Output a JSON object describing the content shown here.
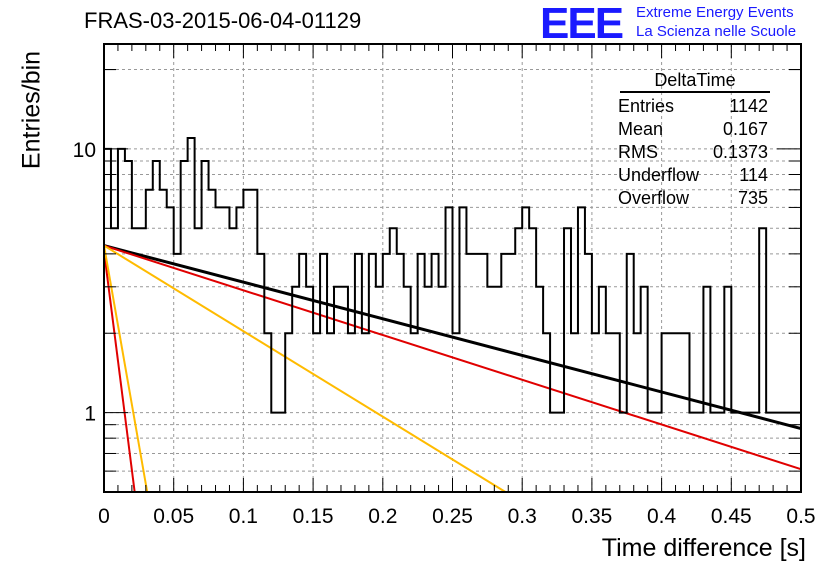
{
  "title": "FRAS-03-2015-06-04-01129",
  "logo": {
    "mark": "EEE",
    "line1": "Extreme Energy Events",
    "line2": "La Scienza nelle Scuole",
    "color": "#1a1aff"
  },
  "stats_box": {
    "title": "DeltaTime",
    "rows": [
      {
        "label": "Entries",
        "value": "1142"
      },
      {
        "label": "Mean",
        "value": "0.167"
      },
      {
        "label": "RMS",
        "value": "0.1373"
      },
      {
        "label": "Underflow",
        "value": "114"
      },
      {
        "label": "Overflow",
        "value": "735"
      }
    ]
  },
  "chart_data": {
    "type": "histogram",
    "title": "FRAS-03-2015-06-04-01129",
    "xlabel": "Time difference [s]",
    "ylabel": "Entries/bin",
    "xlim": [
      0,
      0.5
    ],
    "ylim": [
      0.5,
      25
    ],
    "yscale": "log",
    "grid": true,
    "xticks": [
      "0",
      "0.05",
      "0.1",
      "0.15",
      "0.2",
      "0.25",
      "0.3",
      "0.35",
      "0.4",
      "0.45",
      "0.5"
    ],
    "yticks": [
      "1",
      "10"
    ],
    "bin_width": 0.005,
    "bin_counts": [
      10,
      5,
      10,
      9,
      5,
      5,
      7,
      9,
      7,
      6,
      4,
      9,
      11,
      5,
      9,
      7,
      6,
      6,
      5,
      6,
      7,
      7,
      4,
      2,
      1,
      1,
      2,
      3,
      4,
      3,
      2,
      4,
      2,
      3,
      3,
      2,
      4,
      2,
      4,
      3,
      4,
      5,
      4,
      3,
      2,
      4,
      3,
      4,
      3,
      6,
      2,
      6,
      4,
      4,
      4,
      3,
      3,
      4,
      4,
      5,
      6,
      5,
      3,
      2,
      1,
      1,
      5,
      2,
      6,
      4,
      2,
      3,
      2,
      2,
      1,
      4,
      2,
      3,
      1,
      1,
      2,
      2,
      2,
      2,
      1,
      1,
      3,
      1,
      1,
      3,
      1,
      1,
      1,
      1,
      5,
      1,
      1,
      1,
      1,
      1
    ],
    "series": [
      {
        "label": "black",
        "color": "#000000",
        "y0": 4.3,
        "y1": 0.87
      },
      {
        "label": "red",
        "color": "#e00000",
        "y0": 4.3,
        "y1": 0.61
      },
      {
        "label": "red-steep",
        "color": "#e00000",
        "y0": 4.1,
        "y1": 0.5,
        "x1": 0.022
      },
      {
        "label": "orange",
        "color": "#ffbb00",
        "y0": 4.3,
        "y1": 0.5,
        "x1": 0.288
      },
      {
        "label": "orange-steep",
        "color": "#ffbb00",
        "y0": 4.3,
        "y1": 0.5,
        "x1": 0.031
      }
    ]
  }
}
